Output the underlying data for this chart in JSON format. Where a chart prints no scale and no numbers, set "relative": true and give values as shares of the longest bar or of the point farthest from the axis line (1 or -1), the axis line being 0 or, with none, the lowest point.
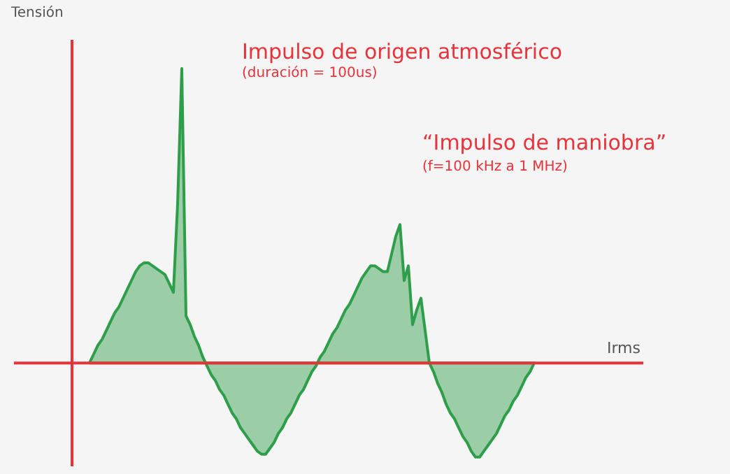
{
  "chart_data": {
    "type": "area",
    "relative": true,
    "xlabel": "Irms",
    "ylabel": "Tensión",
    "ref_lines": [
      {
        "axis": "y",
        "value": 0,
        "color": "#e8333a"
      }
    ],
    "categories": [
      null,
      null,
      null,
      null,
      null,
      null,
      null,
      null,
      null,
      null,
      null,
      null,
      null,
      null,
      null,
      null,
      null,
      null,
      null,
      null,
      null,
      null,
      null,
      null,
      null,
      null,
      null,
      null,
      null,
      null,
      null,
      null,
      null,
      null,
      null,
      null,
      null,
      null,
      null,
      null,
      null,
      null,
      null,
      null,
      null,
      null,
      null,
      null,
      null,
      null,
      null,
      null,
      null,
      null,
      null,
      null,
      null,
      null,
      null,
      null,
      null,
      null,
      null,
      null,
      null,
      null,
      null,
      null,
      null,
      null,
      null,
      null,
      null,
      null,
      null,
      null,
      null,
      null,
      null,
      null,
      null,
      null,
      null,
      null,
      null,
      null,
      null,
      null,
      null,
      null,
      null,
      null,
      null,
      null,
      null,
      null,
      null,
      null,
      null,
      null,
      null,
      null,
      null,
      null,
      null,
      null,
      null
    ],
    "series": [
      {
        "color": "#2e9e4a",
        "values": [
          0,
          0.03,
          0.06,
          0.08,
          0.11,
          0.14,
          0.17,
          0.19,
          0.22,
          0.25,
          0.28,
          0.31,
          0.33,
          0.34,
          0.34,
          0.33,
          0.32,
          0.31,
          0.3,
          0.27,
          0.24,
          0.54,
          1.0,
          0.16,
          0.13,
          0.09,
          0.06,
          0.02,
          -0.01,
          -0.04,
          -0.06,
          -0.09,
          -0.11,
          -0.14,
          -0.17,
          -0.19,
          -0.22,
          -0.24,
          -0.26,
          -0.28,
          -0.3,
          -0.31,
          -0.31,
          -0.29,
          -0.27,
          -0.24,
          -0.22,
          -0.19,
          -0.17,
          -0.14,
          -0.11,
          -0.09,
          -0.06,
          -0.03,
          -0.01,
          0.02,
          0.04,
          0.07,
          0.1,
          0.12,
          0.15,
          0.18,
          0.2,
          0.23,
          0.26,
          0.29,
          0.31,
          0.33,
          0.33,
          0.32,
          0.31,
          0.31,
          0.37,
          0.43,
          0.47,
          0.28,
          0.33,
          0.13,
          0.18,
          0.22,
          0.11,
          0,
          -0.03,
          -0.07,
          -0.1,
          -0.14,
          -0.17,
          -0.19,
          -0.22,
          -0.25,
          -0.27,
          -0.3,
          -0.32,
          -0.32,
          -0.3,
          -0.28,
          -0.26,
          -0.24,
          -0.21,
          -0.18,
          -0.16,
          -0.13,
          -0.11,
          -0.08,
          -0.05,
          -0.03,
          0
        ]
      }
    ],
    "annotations": [
      "Impulso de origen atmosférico",
      "(duración = 100us)",
      "“Impulso de maniobra”",
      "(f=100 kHz a 1 MHz)"
    ]
  }
}
